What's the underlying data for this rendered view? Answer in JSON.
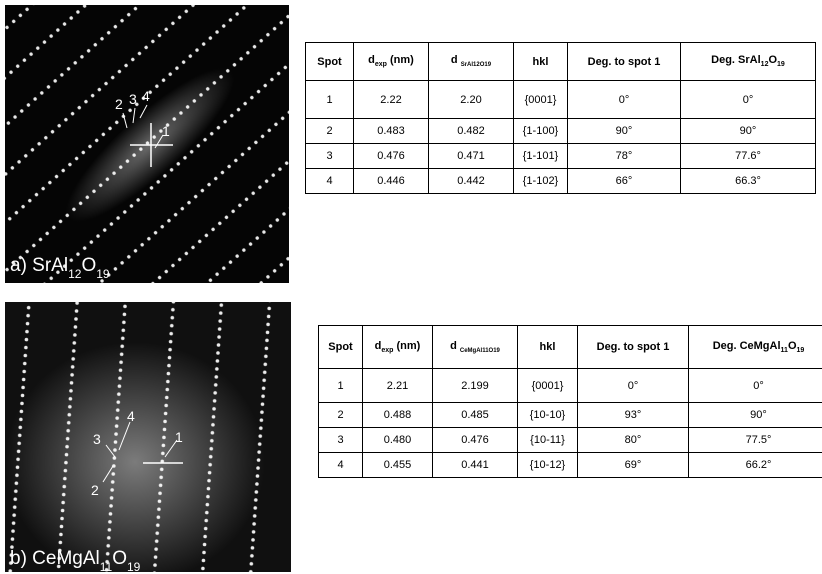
{
  "panels": [
    {
      "label": [
        {
          "t": "a) SrAl"
        },
        {
          "sub": "12"
        },
        {
          "t": "O"
        },
        {
          "sub": "19"
        }
      ],
      "spots": [
        "1",
        "2",
        "3",
        "4"
      ],
      "table": {
        "header": [
          [
            {
              "t": "Spot"
            }
          ],
          [
            {
              "t": "d"
            },
            {
              "sub": "exp"
            },
            {
              "t": " (nm)"
            }
          ],
          [
            {
              "t": "d "
            },
            {
              "sub": "SrAl12O19"
            }
          ],
          [
            {
              "t": "hkl"
            }
          ],
          [
            {
              "t": "Deg. to spot 1"
            }
          ],
          [
            {
              "t": "Deg. SrAl"
            },
            {
              "sub": "12"
            },
            {
              "t": "O"
            },
            {
              "sub": "19"
            }
          ]
        ],
        "rows": [
          [
            "1",
            "2.22",
            "2.20",
            "{0001}",
            "0°",
            "0°"
          ],
          [
            "2",
            "0.483",
            "0.482",
            "{1-100}",
            "90°",
            "90°"
          ],
          [
            "3",
            "0.476",
            "0.471",
            "{1-101}",
            "78°",
            "77.6°"
          ],
          [
            "4",
            "0.446",
            "0.442",
            "{1-102}",
            "66°",
            "66.3°"
          ]
        ]
      }
    },
    {
      "label": [
        {
          "t": "b) CeMgAl"
        },
        {
          "sub": "11"
        },
        {
          "t": "O"
        },
        {
          "sub": "19"
        }
      ],
      "spots": [
        "1",
        "2",
        "3",
        "4"
      ],
      "table": {
        "header": [
          [
            {
              "t": "Spot"
            }
          ],
          [
            {
              "t": "d"
            },
            {
              "sub": "exp"
            },
            {
              "t": " (nm)"
            }
          ],
          [
            {
              "t": "d "
            },
            {
              "sub": "CeMgAl11O19"
            }
          ],
          [
            {
              "t": "hkl"
            }
          ],
          [
            {
              "t": "Deg. to spot 1"
            }
          ],
          [
            {
              "t": "Deg. CeMgAl"
            },
            {
              "sub": "11"
            },
            {
              "t": "O"
            },
            {
              "sub": "19"
            }
          ]
        ],
        "rows": [
          [
            "1",
            "2.21",
            "2.199",
            "{0001}",
            "0°",
            "0°"
          ],
          [
            "2",
            "0.488",
            "0.485",
            "{10-10}",
            "93°",
            "90°"
          ],
          [
            "3",
            "0.480",
            "0.476",
            "{10-11}",
            "80°",
            "77.5°"
          ],
          [
            "4",
            "0.455",
            "0.441",
            "{10-12}",
            "69°",
            "66.2°"
          ]
        ]
      }
    }
  ]
}
